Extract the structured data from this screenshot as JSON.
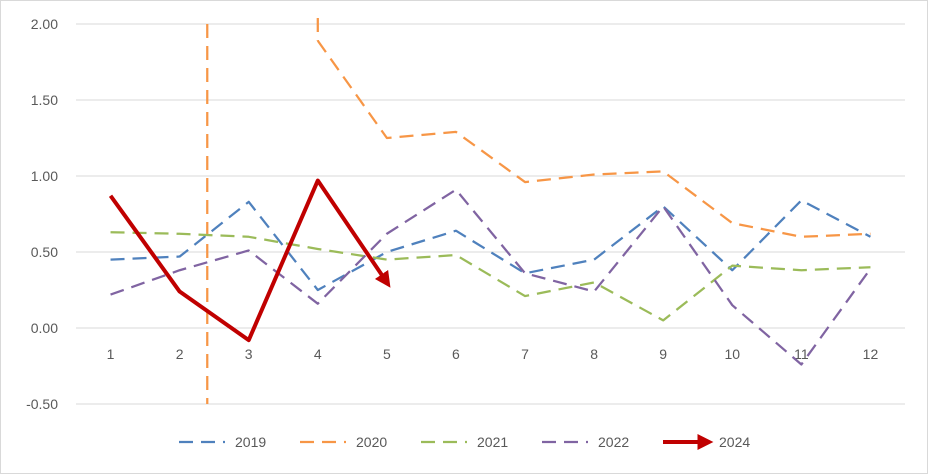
{
  "chart_data": {
    "type": "line",
    "categories": [
      "1",
      "2",
      "3",
      "4",
      "5",
      "6",
      "7",
      "8",
      "9",
      "10",
      "11",
      "12"
    ],
    "ylim": [
      -0.5,
      2.0
    ],
    "yticks": [
      "-0.50",
      "0.00",
      "0.50",
      "1.00",
      "1.50",
      "2.00"
    ],
    "grid": true,
    "legend": "bottom",
    "series": [
      {
        "name": "2019",
        "color": "#4f81bd",
        "style": "dashed",
        "values": [
          0.45,
          0.47,
          0.83,
          0.25,
          0.5,
          0.64,
          0.36,
          0.45,
          0.8,
          0.38,
          0.84,
          0.6
        ]
      },
      {
        "name": "2020",
        "color": "#f79646",
        "style": "dashed",
        "values": [
          null,
          null,
          null,
          1.89,
          1.25,
          1.29,
          0.96,
          1.01,
          1.03,
          0.69,
          0.6,
          0.62
        ],
        "offscale_segment": {
          "x": 2.4,
          "from": 2.0,
          "to": -0.5
        }
      },
      {
        "name": "2021",
        "color": "#9bbb59",
        "style": "dashed",
        "values": [
          0.63,
          0.62,
          0.6,
          0.52,
          0.45,
          0.48,
          0.21,
          0.3,
          0.05,
          0.41,
          0.38,
          0.4
        ]
      },
      {
        "name": "2022",
        "color": "#8064a2",
        "style": "dashed",
        "values": [
          0.22,
          0.38,
          0.51,
          0.16,
          0.62,
          0.91,
          0.36,
          0.24,
          0.8,
          0.15,
          -0.24,
          0.39
        ]
      },
      {
        "name": "2024",
        "color": "#c00000",
        "style": "solid-arrow",
        "values": [
          0.87,
          0.24,
          -0.08,
          0.97,
          0.3,
          null,
          null,
          null,
          null,
          null,
          null,
          null
        ]
      }
    ]
  }
}
